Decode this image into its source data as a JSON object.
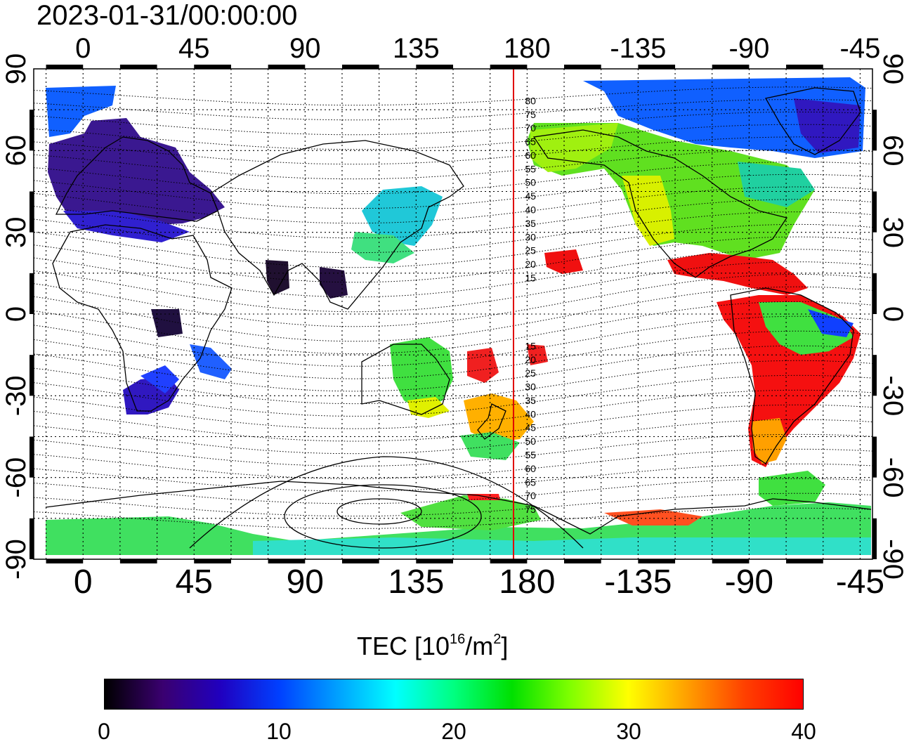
{
  "title": "2023-01-31/00:00:00",
  "map": {
    "top_lon_labels": [
      "0",
      "45",
      "90",
      "135",
      "180",
      "-135",
      "-90",
      "-45"
    ],
    "bottom_lon_labels": [
      "0",
      "45",
      "90",
      "135",
      "180",
      "-135",
      "-90",
      "-45"
    ],
    "left_lat_labels": [
      "90",
      "60",
      "30",
      "0",
      "-30",
      "-60",
      "-90"
    ],
    "right_lat_labels": [
      "90",
      "60",
      "30",
      "0",
      "-30",
      "-60",
      "-90"
    ],
    "lon_range": [
      -20,
      320
    ],
    "lat_range": [
      -90,
      90
    ],
    "meridian_line_lon": 180,
    "meridian_line_color": "#e00000",
    "magnetic_lat_labels": [
      "80",
      "75",
      "70",
      "65",
      "60",
      "55",
      "50",
      "45",
      "40",
      "35",
      "30",
      "25",
      "20",
      "15",
      "15",
      "20",
      "25",
      "30",
      "35",
      "40",
      "45",
      "50",
      "55",
      "60",
      "65",
      "70",
      "75"
    ]
  },
  "colorbar": {
    "title_prefix": "TEC  [10",
    "title_sup1": "16",
    "title_mid": "/m",
    "title_sup2": "2",
    "title_suffix": "]",
    "ticks": [
      "0",
      "10",
      "20",
      "30",
      "40"
    ],
    "range": [
      0,
      40
    ],
    "colors": [
      "#000000",
      "#3a0070",
      "#2000c0",
      "#0040ff",
      "#00a0ff",
      "#00ffff",
      "#00ff80",
      "#00e000",
      "#80ff00",
      "#ffff00",
      "#ffa000",
      "#ff4000",
      "#ff0000"
    ]
  }
}
